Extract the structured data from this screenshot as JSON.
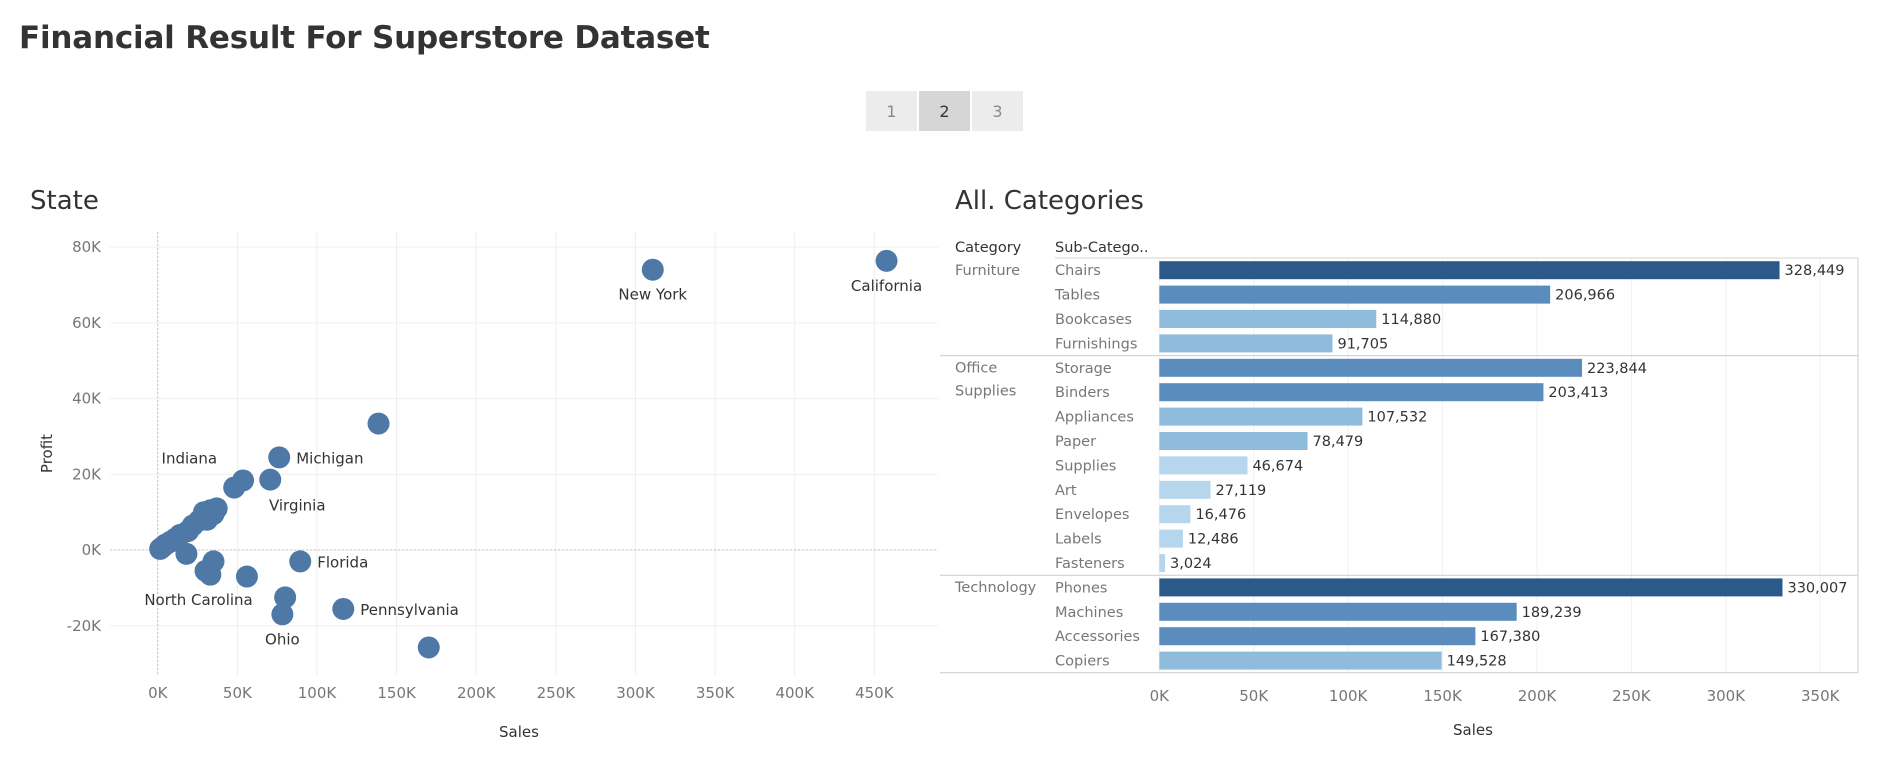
{
  "dashboard": {
    "title": "Financial Result For Superstore Dataset",
    "pages": [
      {
        "label": "1",
        "active": false
      },
      {
        "label": "2",
        "active": true
      },
      {
        "label": "3",
        "active": false
      }
    ]
  },
  "colors": {
    "scatter_point": "#4e79a7",
    "bar_dark": "#2b5a8a",
    "bar_mid": "#5a8cbd",
    "bar_light": "#8fbcdc",
    "bar_lightest": "#b5d6ec"
  },
  "chart_data": [
    {
      "type": "scatter",
      "title": "State",
      "xlabel": "Sales",
      "ylabel": "Profit",
      "xlim": [
        -30000,
        490000
      ],
      "ylim": [
        -33000,
        84000
      ],
      "x_ticks": [
        0,
        50000,
        100000,
        150000,
        200000,
        250000,
        300000,
        350000,
        400000,
        450000
      ],
      "x_tick_labels": [
        "0K",
        "50K",
        "100K",
        "150K",
        "200K",
        "250K",
        "300K",
        "350K",
        "400K",
        "450K"
      ],
      "y_ticks": [
        -20000,
        0,
        20000,
        40000,
        60000,
        80000
      ],
      "y_tick_labels": [
        "-20K",
        "0K",
        "20K",
        "40K",
        "60K",
        "80K"
      ],
      "points": [
        {
          "label": "California",
          "x": 457688,
          "y": 76381,
          "label_pos": "below"
        },
        {
          "label": "New York",
          "x": 310876,
          "y": 74039,
          "label_pos": "below"
        },
        {
          "label": "",
          "x": 138641,
          "y": 33403
        },
        {
          "label": "Michigan",
          "x": 76270,
          "y": 24463,
          "label_pos": "right"
        },
        {
          "label": "Indiana",
          "x": 53555,
          "y": 18383,
          "label_pos": "upper-left"
        },
        {
          "label": "Virginia",
          "x": 70637,
          "y": 18598,
          "label_pos": "below-right"
        },
        {
          "label": "",
          "x": 48000,
          "y": 16500
        },
        {
          "label": "",
          "x": 37000,
          "y": 11000
        },
        {
          "label": "",
          "x": 33000,
          "y": 10500
        },
        {
          "label": "",
          "x": 29000,
          "y": 10000
        },
        {
          "label": "",
          "x": 35000,
          "y": 9500
        },
        {
          "label": "",
          "x": 31000,
          "y": 8000
        },
        {
          "label": "",
          "x": 26000,
          "y": 7800
        },
        {
          "label": "",
          "x": 22000,
          "y": 6500
        },
        {
          "label": "",
          "x": 19000,
          "y": 5000
        },
        {
          "label": "",
          "x": 14000,
          "y": 4000
        },
        {
          "label": "",
          "x": 11000,
          "y": 3000
        },
        {
          "label": "",
          "x": 8000,
          "y": 2200
        },
        {
          "label": "",
          "x": 5000,
          "y": 1500
        },
        {
          "label": "",
          "x": 3000,
          "y": 800
        },
        {
          "label": "",
          "x": 1500,
          "y": 300
        },
        {
          "label": "",
          "x": 18000,
          "y": -1000
        },
        {
          "label": "Florida",
          "x": 89474,
          "y": -3000,
          "label_pos": "right"
        },
        {
          "label": "",
          "x": 35000,
          "y": -3000
        },
        {
          "label": "North Carolina",
          "x": 30000,
          "y": -5500,
          "label_pos": "below-left"
        },
        {
          "label": "",
          "x": 33000,
          "y": -6500
        },
        {
          "label": "",
          "x": 56000,
          "y": -7000
        },
        {
          "label": "",
          "x": 80000,
          "y": -12500
        },
        {
          "label": "Pennsylvania",
          "x": 116512,
          "y": -15560,
          "label_pos": "right"
        },
        {
          "label": "Ohio",
          "x": 78258,
          "y": -16971,
          "label_pos": "below"
        },
        {
          "label": "",
          "x": 170188,
          "y": -25729
        }
      ]
    },
    {
      "type": "bar",
      "title": "All. Categories",
      "xlabel": "Sales",
      "column_headers": [
        "Category",
        "Sub-Catego.."
      ],
      "xlim": [
        -6000,
        370000
      ],
      "x_ticks": [
        0,
        50000,
        100000,
        150000,
        200000,
        250000,
        300000,
        350000
      ],
      "x_tick_labels": [
        "0K",
        "50K",
        "100K",
        "150K",
        "200K",
        "250K",
        "300K",
        "350K"
      ],
      "groups": [
        {
          "category_lines": [
            "Furniture"
          ],
          "items": [
            {
              "name": "Chairs",
              "value": 328449,
              "value_label": "328,449"
            },
            {
              "name": "Tables",
              "value": 206966,
              "value_label": "206,966"
            },
            {
              "name": "Bookcases",
              "value": 114880,
              "value_label": "114,880"
            },
            {
              "name": "Furnishings",
              "value": 91705,
              "value_label": "91,705"
            }
          ]
        },
        {
          "category_lines": [
            "Office",
            "Supplies"
          ],
          "items": [
            {
              "name": "Storage",
              "value": 223844,
              "value_label": "223,844"
            },
            {
              "name": "Binders",
              "value": 203413,
              "value_label": "203,413"
            },
            {
              "name": "Appliances",
              "value": 107532,
              "value_label": "107,532"
            },
            {
              "name": "Paper",
              "value": 78479,
              "value_label": "78,479"
            },
            {
              "name": "Supplies",
              "value": 46674,
              "value_label": "46,674"
            },
            {
              "name": "Art",
              "value": 27119,
              "value_label": "27,119"
            },
            {
              "name": "Envelopes",
              "value": 16476,
              "value_label": "16,476"
            },
            {
              "name": "Labels",
              "value": 12486,
              "value_label": "12,486"
            },
            {
              "name": "Fasteners",
              "value": 3024,
              "value_label": "3,024"
            }
          ]
        },
        {
          "category_lines": [
            "Technology"
          ],
          "items": [
            {
              "name": "Phones",
              "value": 330007,
              "value_label": "330,007"
            },
            {
              "name": "Machines",
              "value": 189239,
              "value_label": "189,239"
            },
            {
              "name": "Accessories",
              "value": 167380,
              "value_label": "167,380"
            },
            {
              "name": "Copiers",
              "value": 149528,
              "value_label": "149,528"
            }
          ]
        }
      ]
    }
  ]
}
